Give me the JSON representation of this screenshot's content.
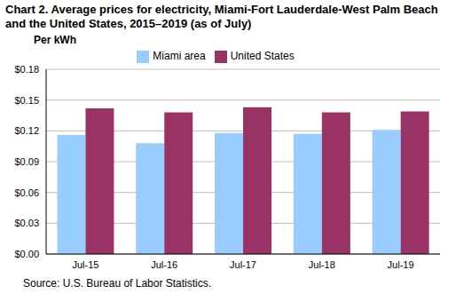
{
  "chart_data": {
    "type": "bar",
    "title": "Chart 2. Average prices for electricity, Miami-Fort Lauderdale-West Palm Beach and the United States, 2015–2019 (as of July)",
    "y_label": "Per kWh",
    "source": "Source: U.S. Bureau of Labor Statistics.",
    "categories": [
      "Jul-15",
      "Jul-16",
      "Jul-17",
      "Jul-18",
      "Jul-19"
    ],
    "series": [
      {
        "name": "Miami area",
        "color": "#99ccff",
        "values": [
          0.116,
          0.108,
          0.118,
          0.117,
          0.121
        ]
      },
      {
        "name": "United States",
        "color": "#993366",
        "values": [
          0.142,
          0.138,
          0.143,
          0.138,
          0.139
        ]
      }
    ],
    "ylim": [
      0,
      0.18
    ],
    "yticks": [
      {
        "value": 0,
        "label": "$0.00"
      },
      {
        "value": 0.03,
        "label": "$0.03"
      },
      {
        "value": 0.06,
        "label": "$0.06"
      },
      {
        "value": 0.09,
        "label": "$0.09"
      },
      {
        "value": 0.12,
        "label": "$0.12"
      },
      {
        "value": 0.15,
        "label": "$0.15"
      },
      {
        "value": 0.18,
        "label": "$0.18"
      }
    ],
    "grid": true,
    "legend": "top"
  }
}
